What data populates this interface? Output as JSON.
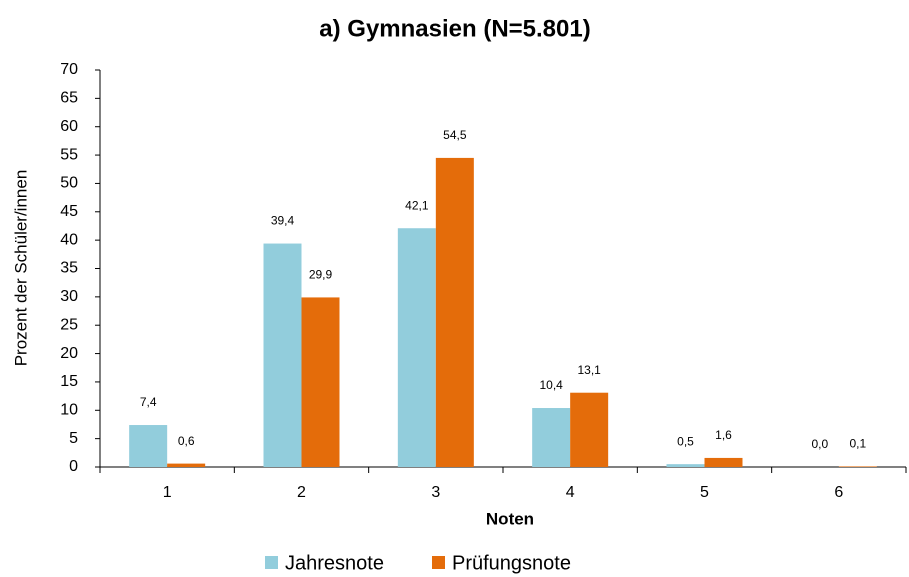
{
  "chart_data": {
    "type": "bar",
    "title": "a) Gymnasien (N=5.801)",
    "xlabel": "Noten",
    "ylabel": "Prozent der Schüler/innen",
    "categories": [
      "1",
      "2",
      "3",
      "4",
      "5",
      "6"
    ],
    "series": [
      {
        "name": "Jahresnote",
        "color": "#92cddc",
        "values": [
          7.4,
          39.4,
          42.1,
          10.4,
          0.5,
          0.0
        ],
        "value_labels": [
          "7,4",
          "39,4",
          "42,1",
          "10,4",
          "0,5",
          "0,0"
        ]
      },
      {
        "name": "Prüfungsnote",
        "color": "#e46c0a",
        "values": [
          0.6,
          29.9,
          54.5,
          13.1,
          1.6,
          0.1
        ],
        "value_labels": [
          "0,6",
          "29,9",
          "54,5",
          "13,1",
          "1,6",
          "0,1"
        ]
      }
    ],
    "ylim": [
      0,
      70
    ],
    "yticks": [
      0,
      5,
      10,
      15,
      20,
      25,
      30,
      35,
      40,
      45,
      50,
      55,
      60,
      65,
      70
    ],
    "grid": false,
    "legend": "bottom"
  }
}
